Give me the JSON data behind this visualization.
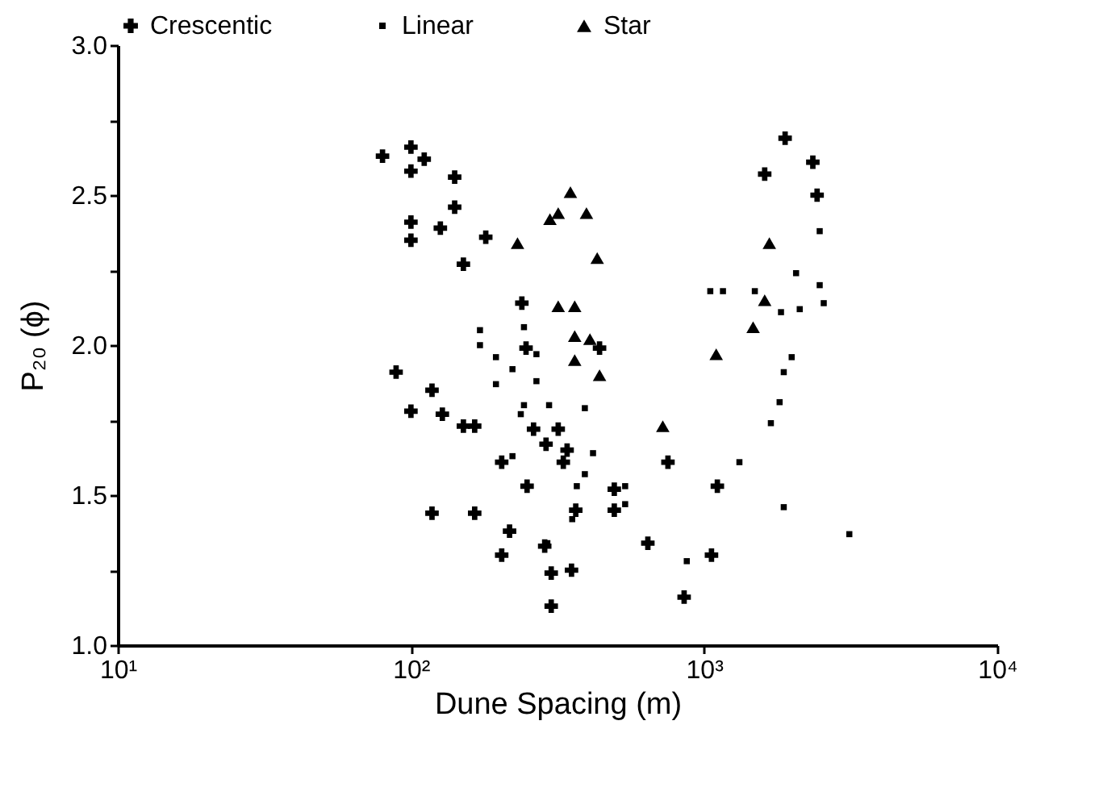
{
  "chart_data": {
    "type": "scatter",
    "xlabel": "Dune Spacing (m)",
    "ylabel": "P₂₀ (ϕ)",
    "log": "x",
    "grid": false,
    "legend": "top",
    "xlim": [
      10,
      10000
    ],
    "xticks": [
      {
        "value": 10,
        "label": "10¹"
      },
      {
        "value": 100,
        "label": "10²"
      },
      {
        "value": 1000,
        "label": "10³"
      },
      {
        "value": 10000,
        "label": "10⁴"
      }
    ],
    "ylim": [
      1,
      3
    ],
    "yticks": [
      {
        "value": 1,
        "label": "1.0"
      },
      {
        "value": 1.25,
        "label": null
      },
      {
        "value": 1.5,
        "label": "1.5"
      },
      {
        "value": 1.75,
        "label": null
      },
      {
        "value": 2,
        "label": "2.0"
      },
      {
        "value": 2.25,
        "label": null
      },
      {
        "value": 2.5,
        "label": "2.5"
      },
      {
        "value": 2.75,
        "label": null
      },
      {
        "value": 3,
        "label": "3.0"
      }
    ],
    "series": [
      {
        "name": "Crescentic",
        "color": "#000000",
        "marker": "cross",
        "x": [
          80,
          100,
          100,
          111,
          141,
          141,
          100,
          100,
          126,
          151,
          180,
          89,
          239,
          440,
          247,
          118,
          100,
          128,
          151,
          165,
          262,
          318,
          1890,
          1610,
          2350,
          2430,
          289,
          341,
          331,
          204,
          249,
          494,
          494,
          365,
          118,
          165,
          217,
          204,
          286,
          301,
          353,
          301,
          643,
          753,
          1110,
          1060,
          855
        ],
        "values": [
          2.63,
          2.66,
          2.58,
          2.62,
          2.56,
          2.46,
          2.41,
          2.35,
          2.39,
          2.27,
          2.36,
          1.91,
          2.14,
          1.99,
          1.99,
          1.85,
          1.78,
          1.77,
          1.73,
          1.73,
          1.72,
          1.72,
          2.69,
          2.57,
          2.61,
          2.5,
          1.67,
          1.65,
          1.61,
          1.61,
          1.53,
          1.52,
          1.45,
          1.45,
          1.44,
          1.44,
          1.38,
          1.3,
          1.33,
          1.24,
          1.25,
          1.13,
          1.34,
          1.61,
          1.53,
          1.3,
          1.16
        ]
      },
      {
        "name": "Linear",
        "color": "#000000",
        "marker": "square",
        "x": [
          172,
          172,
          195,
          222,
          195,
          243,
          268,
          268,
          243,
          296,
          237,
          392,
          1050,
          1160,
          2060,
          2480,
          2480,
          2560,
          1490,
          2120,
          1830,
          1990,
          1870,
          1810,
          1690,
          222,
          418,
          392,
          368,
          538,
          538,
          355,
          292,
          873,
          1320,
          1870,
          3130
        ],
        "values": [
          2.05,
          2,
          1.96,
          1.92,
          1.87,
          2.06,
          1.97,
          1.88,
          1.8,
          1.8,
          1.77,
          1.79,
          2.18,
          2.18,
          2.24,
          2.38,
          2.2,
          2.14,
          2.18,
          2.12,
          2.11,
          1.96,
          1.91,
          1.81,
          1.74,
          1.63,
          1.64,
          1.57,
          1.53,
          1.53,
          1.47,
          1.42,
          1.34,
          1.28,
          1.61,
          1.46,
          1.37
        ]
      },
      {
        "name": "Star",
        "color": "#000000",
        "marker": "triangle",
        "x": [
          350,
          298,
          318,
          397,
          432,
          231,
          318,
          362,
          362,
          408,
          362,
          440,
          723,
          1100,
          1470,
          1610,
          1670
        ],
        "values": [
          2.51,
          2.42,
          2.44,
          2.44,
          2.29,
          2.34,
          2.13,
          2.13,
          2.03,
          2.02,
          1.95,
          1.9,
          1.73,
          1.97,
          2.06,
          2.15,
          2.34
        ]
      }
    ]
  }
}
